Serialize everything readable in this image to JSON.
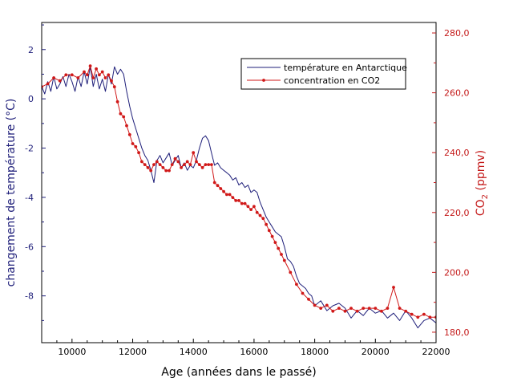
{
  "chart_data": {
    "type": "line",
    "xlabel": "Age (années dans le passé)",
    "ylabel_left": "changement de température (°C)",
    "ylabel_right_main": "CO",
    "ylabel_right_sub": "2",
    "ylabel_right_unit": " (ppmv)",
    "xlim": [
      9000,
      22000
    ],
    "ylim_left": [
      -9.9,
      3.1
    ],
    "ylim_right": [
      176.5,
      283.5
    ],
    "x_ticks": [
      10000,
      12000,
      14000,
      16000,
      18000,
      20000,
      22000
    ],
    "y_left_ticks": [
      "2",
      "0",
      "-2",
      "-4",
      "-6",
      "-8"
    ],
    "y_left_tick_values": [
      2,
      0,
      -2,
      -4,
      -6,
      -8
    ],
    "y_right_ticks": [
      "280,0",
      "260,0",
      "240,0",
      "220,0",
      "200,0",
      "180,0"
    ],
    "y_right_tick_values": [
      280,
      260,
      240,
      220,
      200,
      180
    ],
    "legend_position": "top-right",
    "grid": false,
    "colors": {
      "temperature": "#1f1f7a",
      "co2": "#d01818",
      "left_axis": "#1f1f7a",
      "right_axis": "#c41a1a",
      "frame": "#000000"
    },
    "series": [
      {
        "name": "température en Antarctique",
        "axis": "left",
        "x": [
          9000,
          9100,
          9200,
          9300,
          9400,
          9500,
          9600,
          9700,
          9800,
          9900,
          10000,
          10100,
          10200,
          10300,
          10400,
          10500,
          10600,
          10700,
          10800,
          10900,
          11000,
          11100,
          11200,
          11300,
          11400,
          11500,
          11600,
          11700,
          11800,
          11900,
          12000,
          12100,
          12200,
          12300,
          12400,
          12500,
          12600,
          12700,
          12800,
          12900,
          13000,
          13100,
          13200,
          13300,
          13400,
          13500,
          13600,
          13700,
          13800,
          13900,
          14000,
          14100,
          14200,
          14300,
          14400,
          14500,
          14600,
          14700,
          14800,
          14900,
          15000,
          15100,
          15200,
          15300,
          15400,
          15500,
          15600,
          15700,
          15800,
          15900,
          16000,
          16100,
          16200,
          16300,
          16400,
          16500,
          16600,
          16700,
          16800,
          16900,
          17000,
          17100,
          17200,
          17300,
          17400,
          17500,
          17600,
          17700,
          17800,
          17900,
          18000,
          18200,
          18400,
          18600,
          18800,
          19000,
          19200,
          19400,
          19600,
          19800,
          20000,
          20200,
          20400,
          20600,
          20800,
          21000,
          21200,
          21400,
          21600,
          21800,
          22000
        ],
        "y": [
          0.5,
          0.2,
          0.7,
          0.3,
          0.9,
          0.4,
          0.6,
          0.9,
          0.5,
          1.0,
          0.7,
          0.3,
          0.9,
          0.5,
          1.1,
          0.6,
          1.3,
          0.5,
          1.0,
          0.4,
          0.8,
          0.3,
          1.0,
          0.6,
          1.3,
          1.0,
          1.2,
          1.0,
          0.3,
          -0.3,
          -0.8,
          -1.2,
          -1.6,
          -2.0,
          -2.3,
          -2.5,
          -2.9,
          -3.4,
          -2.5,
          -2.3,
          -2.6,
          -2.4,
          -2.2,
          -2.7,
          -2.5,
          -2.3,
          -2.8,
          -2.6,
          -2.9,
          -2.7,
          -2.8,
          -2.5,
          -2.0,
          -1.6,
          -1.5,
          -1.7,
          -2.2,
          -2.7,
          -2.6,
          -2.8,
          -2.9,
          -3.0,
          -3.1,
          -3.3,
          -3.2,
          -3.5,
          -3.4,
          -3.6,
          -3.5,
          -3.8,
          -3.7,
          -3.8,
          -4.2,
          -4.5,
          -4.8,
          -5.0,
          -5.2,
          -5.4,
          -5.5,
          -5.6,
          -6.0,
          -6.5,
          -6.6,
          -6.8,
          -7.2,
          -7.5,
          -7.6,
          -7.7,
          -7.9,
          -8.0,
          -8.4,
          -8.2,
          -8.6,
          -8.4,
          -8.3,
          -8.5,
          -8.9,
          -8.6,
          -8.8,
          -8.5,
          -8.7,
          -8.6,
          -8.9,
          -8.7,
          -9.0,
          -8.6,
          -8.9,
          -9.3,
          -9.0,
          -8.9,
          -9.1
        ]
      },
      {
        "name": "concentration en CO2",
        "axis": "right",
        "x": [
          9000,
          9200,
          9400,
          9600,
          9800,
          10000,
          10200,
          10400,
          10500,
          10600,
          10700,
          10800,
          10900,
          11000,
          11100,
          11200,
          11300,
          11400,
          11500,
          11600,
          11700,
          11800,
          11900,
          12000,
          12100,
          12200,
          12300,
          12400,
          12500,
          12600,
          12700,
          12800,
          12900,
          13000,
          13100,
          13200,
          13300,
          13400,
          13500,
          13600,
          13700,
          13800,
          13900,
          14000,
          14100,
          14200,
          14300,
          14400,
          14500,
          14600,
          14700,
          14800,
          14900,
          15000,
          15100,
          15200,
          15300,
          15400,
          15500,
          15600,
          15700,
          15800,
          15900,
          16000,
          16100,
          16200,
          16300,
          16400,
          16500,
          16600,
          16700,
          16800,
          16900,
          17000,
          17200,
          17400,
          17600,
          17800,
          18000,
          18200,
          18400,
          18600,
          18800,
          19000,
          19200,
          19400,
          19600,
          19800,
          20000,
          20200,
          20400,
          20600,
          20800,
          21000,
          21200,
          21400,
          21600,
          21800,
          22000
        ],
        "y": [
          262,
          263,
          265,
          264,
          266,
          266,
          265,
          267,
          266,
          269,
          265,
          268,
          266,
          267,
          265,
          266,
          264,
          262,
          257,
          253,
          252,
          249,
          246,
          243,
          242,
          240,
          237,
          236,
          235,
          234,
          236,
          237,
          236,
          235,
          234,
          234,
          236,
          238,
          237,
          235,
          236,
          237,
          236,
          240,
          237,
          236,
          235,
          236,
          236,
          236,
          230,
          229,
          228,
          227,
          226,
          226,
          225,
          224,
          224,
          223,
          223,
          222,
          221,
          222,
          220,
          219,
          218,
          216,
          214,
          212,
          210,
          208,
          206,
          204,
          200,
          196,
          193,
          191,
          189,
          188,
          189,
          187,
          188,
          187,
          188,
          187,
          188,
          188,
          188,
          187,
          188,
          195,
          188,
          187,
          186,
          185,
          186,
          185,
          185
        ]
      }
    ]
  }
}
